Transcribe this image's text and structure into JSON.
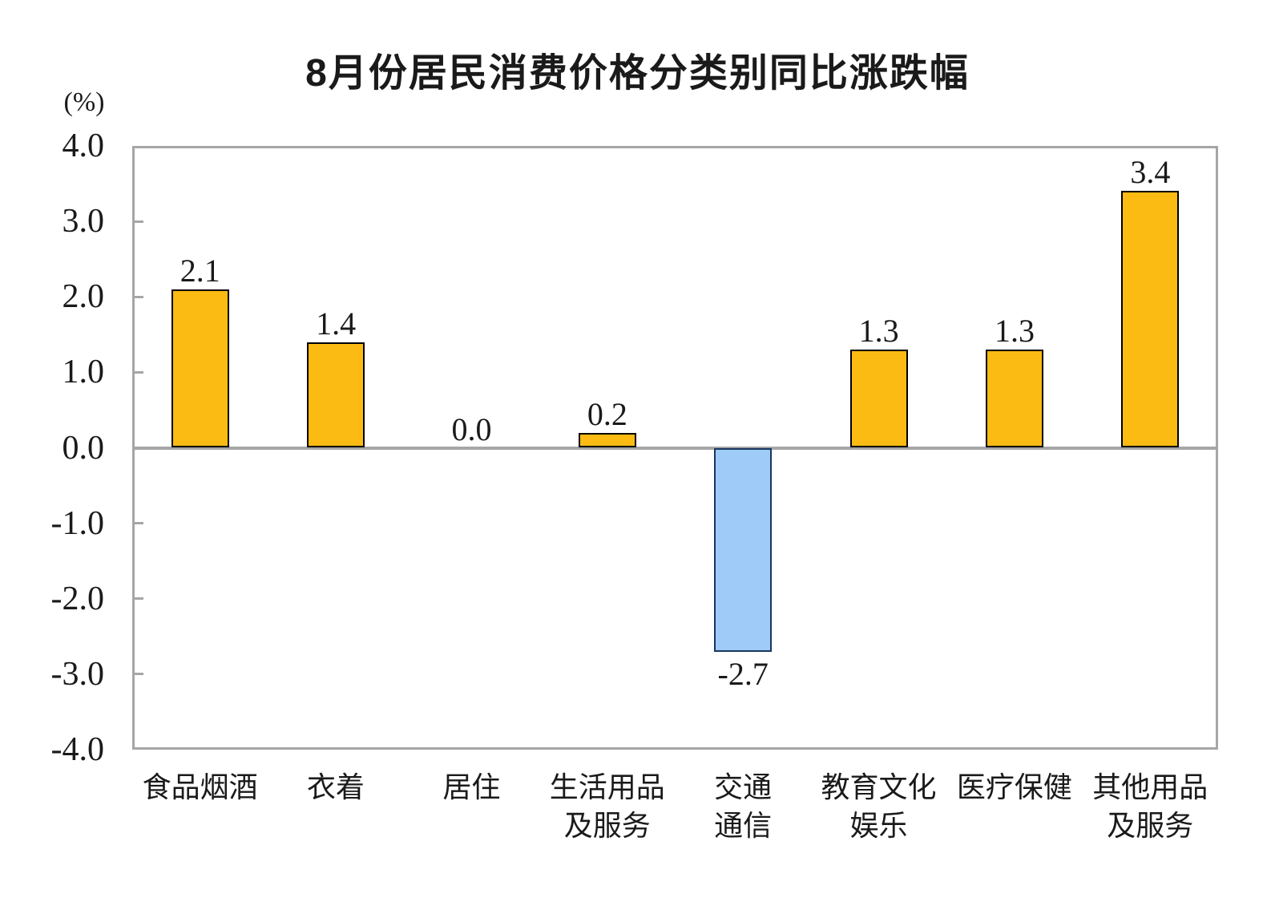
{
  "chart_data": {
    "type": "bar",
    "title": "8月份居民消费价格分类别同比涨跌幅",
    "unit_label": "(%)",
    "categories": [
      "食品烟酒",
      "衣着",
      "居住",
      "生活用品及服务",
      "交通通信",
      "教育文化娱乐",
      "医疗保健",
      "其他用品及服务"
    ],
    "category_lines": [
      [
        "食品烟酒"
      ],
      [
        "衣着"
      ],
      [
        "居住"
      ],
      [
        "生活用品",
        "及服务"
      ],
      [
        "交通",
        "通信"
      ],
      [
        "教育文化",
        "娱乐"
      ],
      [
        "医疗保健"
      ],
      [
        "其他用品",
        "及服务"
      ]
    ],
    "values": [
      2.1,
      1.4,
      0.0,
      0.2,
      -2.7,
      1.3,
      1.3,
      3.4
    ],
    "value_labels": [
      "2.1",
      "1.4",
      "0.0",
      "0.2",
      "-2.7",
      "1.3",
      "1.3",
      "3.4"
    ],
    "ylabel": "",
    "xlabel": "",
    "ylim": [
      -4.0,
      4.0
    ],
    "y_tick_values": [
      4.0,
      3.0,
      2.0,
      1.0,
      0.0,
      -1.0,
      -2.0,
      -3.0,
      -4.0
    ],
    "y_tick_labels": [
      "4.0",
      "3.0",
      "2.0",
      "1.0",
      "0.0",
      "-1.0",
      "-2.0",
      "-3.0",
      "-4.0"
    ],
    "grid": false,
    "legend": false,
    "colors": {
      "positive_fill": "#FBBB13",
      "positive_border": "#000000",
      "negative_fill": "#9FCBF8",
      "negative_border": "#17365D",
      "axis": "#A6A6A6",
      "text": "#1A1A1A"
    }
  }
}
